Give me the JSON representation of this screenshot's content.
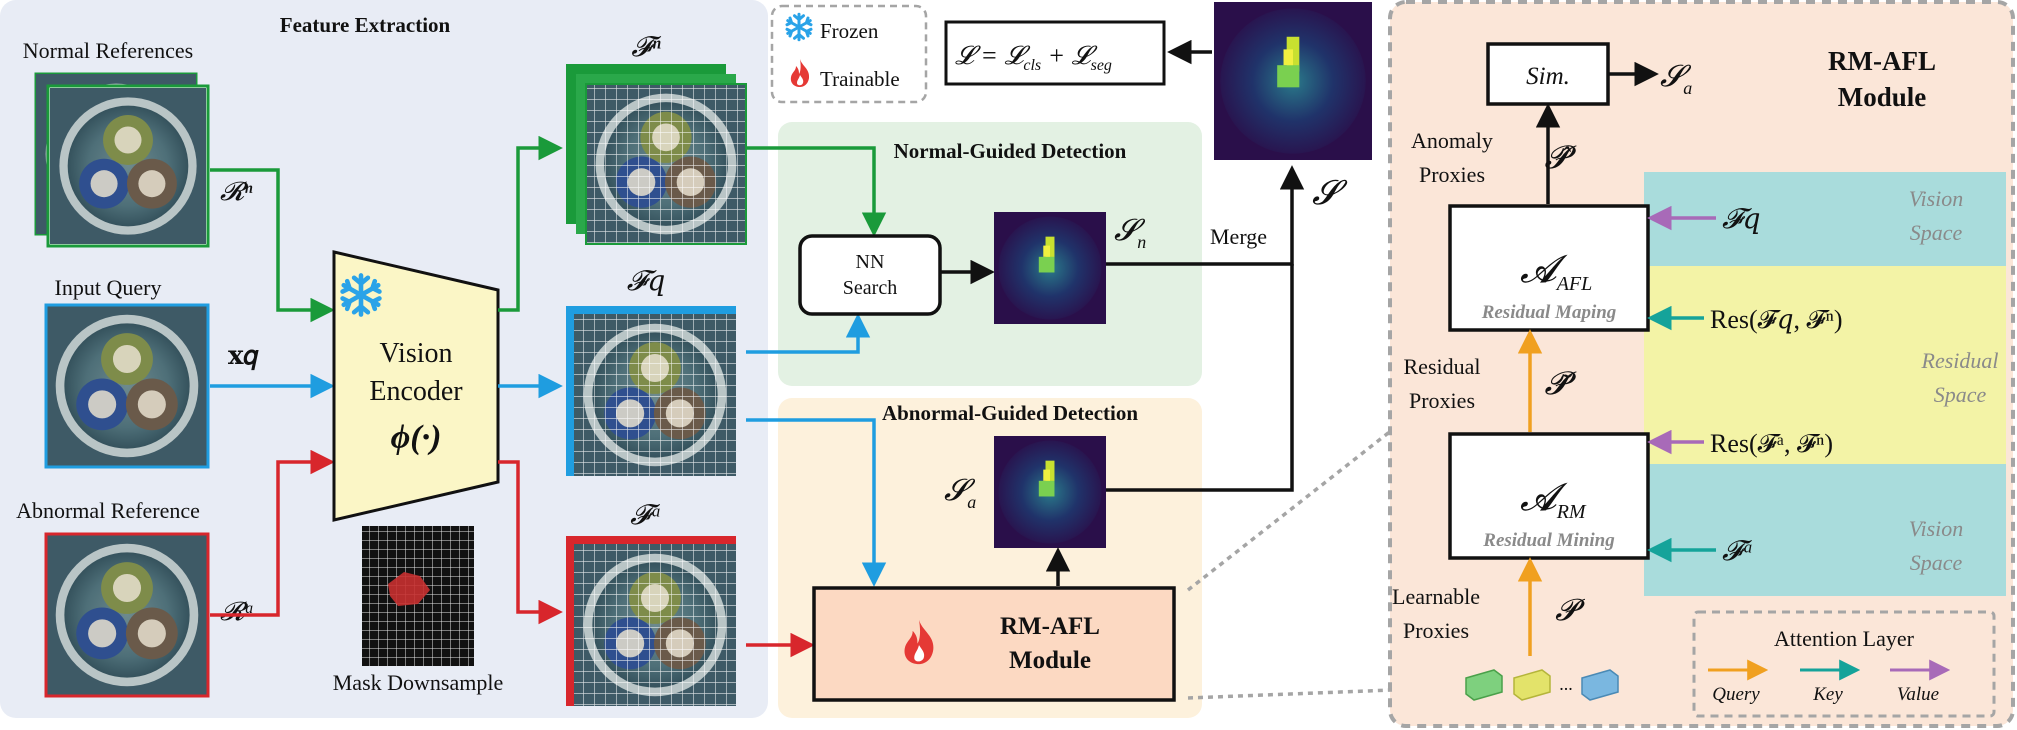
{
  "feature_extraction": {
    "title": "Feature Extraction",
    "normal_references": "Normal References",
    "input_query": "Input Query",
    "abnormal_reference": "Abnormal Reference",
    "r_n": "𝓡ⁿ",
    "x_q": "𝐱𝑞",
    "r_a": "𝓡ᵃ",
    "encoder_line1": "Vision",
    "encoder_line2": "Encoder",
    "encoder_line3": "ϕ(·)",
    "mask_downsample": "Mask Downsample",
    "f_n": "𝓕ⁿ",
    "f_q": "𝓕𝑞",
    "f_a": "𝓕ᵃ"
  },
  "legend": {
    "frozen": "Frozen",
    "trainable": "Trainable"
  },
  "loss": "𝓛 = 𝓛cls + 𝓛seg",
  "loss_parts": {
    "lhs": "𝓛 = 𝓛",
    "cls": "cls",
    "plus": " + 𝓛",
    "seg": "seg"
  },
  "normal_guided": {
    "title": "Normal-Guided Detection",
    "nn_line1": "NN",
    "nn_line2": "Search",
    "s_n": "𝓢",
    "s_n_sub": "n"
  },
  "merge": "Merge",
  "s": "𝓢",
  "abnormal_guided": {
    "title": "Abnormal-Guided Detection",
    "s_a": "𝓢",
    "s_a_sub": "a",
    "module_line1": "RM-AFL",
    "module_line2": "Module"
  },
  "rm_afl": {
    "title_line1": "RM-AFL",
    "title_line2": "Module",
    "sim": "Sim.",
    "s_a": "𝓢",
    "s_a_sub": "a",
    "anomaly_proxies_1": "Anomaly",
    "anomaly_proxies_2": "Proxies",
    "p_hat": "𝓟̂",
    "a_afl": "𝓐",
    "a_afl_sub": "AFL",
    "residual_maping": "Residual Maping",
    "residual_proxies_1": "Residual",
    "residual_proxies_2": "Proxies",
    "p_tilde": "𝓟̃",
    "a_rm": "𝓐",
    "a_rm_sub": "RM",
    "residual_mining": "Residual Mining",
    "learnable_proxies_1": "Learnable",
    "learnable_proxies_2": "Proxies",
    "p": "𝓟",
    "fq_input": "𝓕𝑞",
    "res1": "Res(𝓕𝑞, 𝓕ⁿ)",
    "res2": "Res(𝓕ᵃ, 𝓕ⁿ)",
    "fa_input": "𝓕ᵃ",
    "vision_space_1a": "Vision",
    "vision_space_1b": "Space",
    "residual_space_a": "Residual",
    "residual_space_b": "Space",
    "vision_space_2a": "Vision",
    "vision_space_2b": "Space",
    "dots": "...",
    "attention_layer": "Attention Layer",
    "query": "Query",
    "key": "Key",
    "value": "Value"
  },
  "colors": {
    "green": "#1a9a3a",
    "blue": "#1f9de0",
    "red": "#d8262c",
    "orange": "#f0a020",
    "teal": "#15a39a",
    "purple": "#a86ab8"
  }
}
